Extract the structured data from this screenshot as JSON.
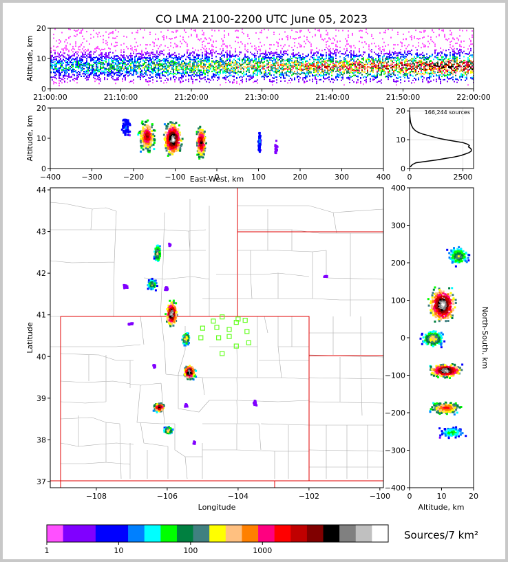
{
  "chart_data": {
    "type": "heatmap",
    "title": "CO LMA 2100-2200 UTC June 05, 2023",
    "panels": {
      "time_height": {
        "ylabel": "Altitude, km",
        "ylim": [
          0,
          20
        ],
        "yticks": [
          "0",
          "10",
          "20"
        ],
        "xticks": [
          "21:00:00",
          "21:10:00",
          "21:20:00",
          "21:30:00",
          "21:40:00",
          "21:50:00",
          "22:00:00"
        ]
      },
      "ew_height": {
        "xlabel": "East-West, km",
        "ylabel": "Altitude, km",
        "xlim": [
          -400,
          400
        ],
        "ylim": [
          0,
          20
        ],
        "xticks": [
          "−400",
          "−300",
          "−200",
          "−100",
          "0",
          "100",
          "200",
          "300",
          "400"
        ],
        "yticks": [
          "0",
          "10",
          "20"
        ],
        "clusters": [
          {
            "x": -220,
            "xw": 12,
            "alt": 14,
            "aw": 4,
            "n": 70
          },
          {
            "x": -170,
            "xw": 20,
            "alt": 11,
            "aw": 7,
            "n": 240
          },
          {
            "x": -108,
            "xw": 22,
            "alt": 10,
            "aw": 7,
            "n": 360
          },
          {
            "x": -40,
            "xw": 12,
            "alt": 9,
            "aw": 7,
            "n": 260
          },
          {
            "x": 100,
            "xw": 3,
            "alt": 9,
            "aw": 5,
            "n": 70
          },
          {
            "x": 140,
            "xw": 3,
            "alt": 7,
            "aw": 3,
            "n": 25
          }
        ]
      },
      "histogram": {
        "label": "166,244 sources",
        "xticks": [
          "0",
          "2500"
        ],
        "yticks": [
          "0",
          "10",
          "20"
        ],
        "xlim": [
          0,
          3000
        ],
        "ylim": [
          0,
          21
        ],
        "profile": [
          [
            0.5,
            40
          ],
          [
            1,
            80
          ],
          [
            1.5,
            160
          ],
          [
            2,
            300
          ],
          [
            2.5,
            800
          ],
          [
            3,
            1300
          ],
          [
            3.5,
            1700
          ],
          [
            4,
            2100
          ],
          [
            4.5,
            2400
          ],
          [
            5,
            2600
          ],
          [
            5.5,
            2780
          ],
          [
            6,
            2880
          ],
          [
            6.5,
            2900
          ],
          [
            7,
            2860
          ],
          [
            7.5,
            2760
          ],
          [
            8,
            2800
          ],
          [
            8.5,
            2700
          ],
          [
            9,
            2500
          ],
          [
            9.5,
            2100
          ],
          [
            10,
            1700
          ],
          [
            10.5,
            1350
          ],
          [
            11,
            1100
          ],
          [
            11.5,
            850
          ],
          [
            12,
            600
          ],
          [
            12.5,
            420
          ],
          [
            13,
            300
          ],
          [
            13.5,
            220
          ],
          [
            14,
            160
          ],
          [
            15,
            90
          ],
          [
            16,
            50
          ],
          [
            17,
            30
          ],
          [
            18,
            15
          ],
          [
            19,
            8
          ],
          [
            20,
            3
          ]
        ]
      },
      "plan": {
        "xlabel": "Longitude",
        "ylabel": "Latitude",
        "xlim": [
          -109.3,
          -99.9
        ],
        "ylim": [
          36.85,
          44.05
        ],
        "xticks": [
          "−108",
          "−106",
          "−104",
          "−102",
          "−100"
        ],
        "yticks": [
          "37",
          "38",
          "39",
          "40",
          "41",
          "42",
          "43",
          "44"
        ],
        "stations": [
          [
            -104.7,
            40.85
          ],
          [
            -104.45,
            40.95
          ],
          [
            -104.05,
            40.82
          ],
          [
            -104.0,
            40.9
          ],
          [
            -103.8,
            40.87
          ],
          [
            -105.0,
            40.68
          ],
          [
            -104.6,
            40.7
          ],
          [
            -104.25,
            40.65
          ],
          [
            -103.75,
            40.6
          ],
          [
            -105.05,
            40.45
          ],
          [
            -104.55,
            40.45
          ],
          [
            -104.25,
            40.48
          ],
          [
            -103.7,
            40.33
          ],
          [
            -104.05,
            40.25
          ],
          [
            -104.45,
            40.07
          ]
        ],
        "storms": [
          {
            "lon": -106.3,
            "lat": 42.5,
            "w": 0.12,
            "h": 0.25,
            "n": 120
          },
          {
            "lon": -105.95,
            "lat": 42.7,
            "w": 0.05,
            "h": 0.05,
            "n": 15
          },
          {
            "lon": -106.45,
            "lat": 41.75,
            "w": 0.15,
            "h": 0.15,
            "n": 110
          },
          {
            "lon": -106.05,
            "lat": 41.65,
            "w": 0.06,
            "h": 0.06,
            "n": 25
          },
          {
            "lon": -107.2,
            "lat": 41.7,
            "w": 0.08,
            "h": 0.05,
            "n": 25
          },
          {
            "lon": -105.9,
            "lat": 41.05,
            "w": 0.18,
            "h": 0.35,
            "n": 260
          },
          {
            "lon": -105.5,
            "lat": 40.45,
            "w": 0.12,
            "h": 0.18,
            "n": 130
          },
          {
            "lon": -105.4,
            "lat": 39.65,
            "w": 0.18,
            "h": 0.2,
            "n": 240
          },
          {
            "lon": -106.25,
            "lat": 38.8,
            "w": 0.18,
            "h": 0.12,
            "n": 200
          },
          {
            "lon": -106.0,
            "lat": 38.25,
            "w": 0.14,
            "h": 0.1,
            "n": 130
          },
          {
            "lon": -106.4,
            "lat": 39.8,
            "w": 0.05,
            "h": 0.05,
            "n": 12
          },
          {
            "lon": -105.5,
            "lat": 38.85,
            "w": 0.05,
            "h": 0.08,
            "n": 20
          },
          {
            "lon": -103.55,
            "lat": 38.9,
            "w": 0.05,
            "h": 0.08,
            "n": 20
          },
          {
            "lon": -105.25,
            "lat": 37.95,
            "w": 0.04,
            "h": 0.05,
            "n": 12
          },
          {
            "lon": -107.05,
            "lat": 40.8,
            "w": 0.1,
            "h": 0.03,
            "n": 14
          },
          {
            "lon": -101.55,
            "lat": 41.95,
            "w": 0.08,
            "h": 0.03,
            "n": 12
          }
        ]
      },
      "ns_height": {
        "xlabel": "Altitude, km",
        "ylabel": "North-South, km",
        "ylim": [
          -400,
          400
        ],
        "xlim": [
          0,
          20
        ],
        "xticks": [
          "0",
          "10",
          "20"
        ],
        "yticks": [
          "400",
          "300",
          "200",
          "100",
          "0",
          "−100",
          "−200",
          "−300",
          "−400"
        ],
        "clusters": [
          {
            "ns": 220,
            "nw": 30,
            "alt": 15,
            "aw": 4,
            "n": 150
          },
          {
            "ns": 90,
            "nw": 55,
            "alt": 10,
            "aw": 5,
            "n": 380
          },
          {
            "ns": 0,
            "nw": 25,
            "alt": 7,
            "aw": 4,
            "n": 180
          },
          {
            "ns": -85,
            "nw": 20,
            "alt": 11,
            "aw": 6,
            "n": 320
          },
          {
            "ns": -185,
            "nw": 20,
            "alt": 11,
            "aw": 6,
            "n": 230
          },
          {
            "ns": -250,
            "nw": 18,
            "alt": 13,
            "aw": 5,
            "n": 120
          }
        ]
      }
    },
    "colorbar": {
      "label": "Sources/7 km²",
      "ticks": [
        "1",
        "10",
        "100",
        "1000"
      ],
      "scale": "log",
      "colors": [
        "#ff50ff",
        "#8000ff",
        "#8000ff",
        "#0000ff",
        "#0000ff",
        "#0080ff",
        "#00ffff",
        "#00ff00",
        "#008040",
        "#408080",
        "#ffff00",
        "#ffc080",
        "#ff8000",
        "#ff0080",
        "#ff0000",
        "#c00000",
        "#800000",
        "#000000",
        "#808080",
        "#c0c0c0",
        "#ffffff"
      ]
    }
  }
}
